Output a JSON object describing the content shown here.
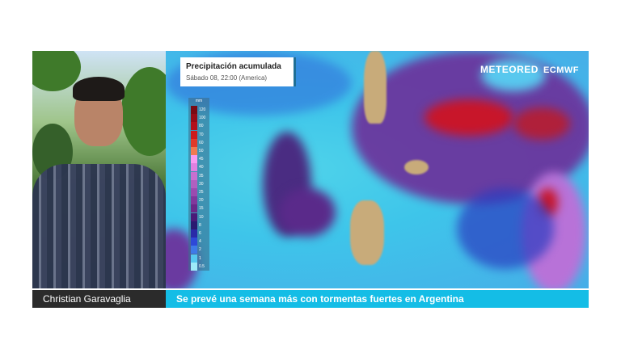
{
  "presenter": {
    "name": "Christian Garavaglia"
  },
  "headline": "Se prevé una semana más con tormentas fuertes en Argentina",
  "map": {
    "title": "Precipitación acumulada",
    "subtitle": "Sábado 08, 22:00 (America)",
    "logo": {
      "brand": "METEORED",
      "partner": "ECMWF"
    },
    "colorbar": {
      "unit": "mm",
      "levels": [
        {
          "label": "120",
          "color": "#7a0a14"
        },
        {
          "label": "100",
          "color": "#960c18"
        },
        {
          "label": "80",
          "color": "#b4101c"
        },
        {
          "label": "70",
          "color": "#cc1a1a"
        },
        {
          "label": "60",
          "color": "#e03a2a"
        },
        {
          "label": "50",
          "color": "#f07a50"
        },
        {
          "label": "45",
          "color": "#f89af0"
        },
        {
          "label": "40",
          "color": "#e080e0"
        },
        {
          "label": "35",
          "color": "#c870d0"
        },
        {
          "label": "30",
          "color": "#b060c0"
        },
        {
          "label": "25",
          "color": "#9a4cb0"
        },
        {
          "label": "20",
          "color": "#80389c"
        },
        {
          "label": "15",
          "color": "#6a2888"
        },
        {
          "label": "10",
          "color": "#4a1a78"
        },
        {
          "label": "8",
          "color": "#2a1a70"
        },
        {
          "label": "6",
          "color": "#2a2aa8"
        },
        {
          "label": "4",
          "color": "#2e48d8"
        },
        {
          "label": "2",
          "color": "#3e7ae8"
        },
        {
          "label": "1",
          "color": "#56c8f0"
        },
        {
          "label": "0.5",
          "color": "#9eeaf8"
        }
      ]
    }
  },
  "colors": {
    "accent": "#14bde6",
    "name_bar": "#2b2b2b"
  }
}
